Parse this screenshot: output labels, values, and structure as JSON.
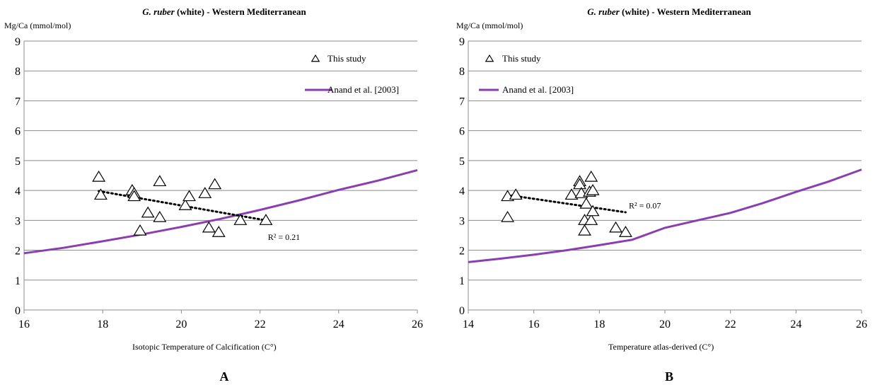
{
  "chart_data": [
    {
      "type": "scatter",
      "panel_label": "A",
      "title_italic": "G. ruber",
      "title_rest": " (white) - Western Mediterranean",
      "ylabel": "Mg/Ca (mmol/mol)",
      "xlabel": "Isotopic Temperature of Calcification (C°)",
      "xlim": [
        16,
        26
      ],
      "ylim": [
        0,
        9
      ],
      "xticks": [
        16,
        18,
        20,
        22,
        24,
        26
      ],
      "yticks": [
        0,
        1,
        2,
        3,
        4,
        5,
        6,
        7,
        8,
        9
      ],
      "grid": "horizontal",
      "legend": [
        {
          "label": "This study",
          "marker": "triangle"
        },
        {
          "label": "Anand et al. [2003]",
          "marker": "line",
          "color": "#8b3fae"
        }
      ],
      "series": [
        {
          "name": "This study",
          "marker": "triangle",
          "points": [
            [
              17.9,
              4.45
            ],
            [
              17.95,
              3.85
            ],
            [
              18.75,
              4.0
            ],
            [
              18.8,
              3.9
            ],
            [
              18.8,
              3.8
            ],
            [
              18.95,
              2.65
            ],
            [
              19.15,
              3.25
            ],
            [
              19.45,
              3.1
            ],
            [
              19.45,
              4.3
            ],
            [
              20.1,
              3.5
            ],
            [
              20.2,
              3.8
            ],
            [
              20.6,
              3.9
            ],
            [
              20.7,
              2.75
            ],
            [
              20.85,
              4.2
            ],
            [
              20.95,
              2.6
            ],
            [
              21.5,
              3.0
            ],
            [
              22.15,
              3.0
            ]
          ]
        },
        {
          "name": "Anand et al. [2003]",
          "type": "line",
          "color": "#8b3fae",
          "points": [
            [
              16,
              1.9
            ],
            [
              17,
              2.08
            ],
            [
              18,
              2.3
            ],
            [
              19,
              2.53
            ],
            [
              20,
              2.78
            ],
            [
              21,
              3.05
            ],
            [
              22,
              3.35
            ],
            [
              23,
              3.67
            ],
            [
              24,
              4.02
            ],
            [
              25,
              4.33
            ],
            [
              26,
              4.68
            ]
          ]
        }
      ],
      "trendline": {
        "points": [
          [
            17.9,
            3.98
          ],
          [
            22.15,
            3.0
          ]
        ],
        "label": "R² = 0.21",
        "label_at": [
          22.2,
          2.35
        ]
      }
    },
    {
      "type": "scatter",
      "panel_label": "B",
      "title_italic": "G. ruber",
      "title_rest": " (white) - Western Mediterranean",
      "ylabel": "Mg/Ca (mmol/mol)",
      "xlabel": "Temperature atlas-derived (C°)",
      "xlim": [
        14,
        26
      ],
      "ylim": [
        0,
        9
      ],
      "xticks": [
        14,
        16,
        18,
        20,
        22,
        24,
        26
      ],
      "yticks": [
        0,
        1,
        2,
        3,
        4,
        5,
        6,
        7,
        8,
        9
      ],
      "grid": "horizontal",
      "legend": [
        {
          "label": "This study",
          "marker": "triangle"
        },
        {
          "label": "Anand et al. [2003]",
          "marker": "line",
          "color": "#8b3fae"
        }
      ],
      "series": [
        {
          "name": "This study",
          "marker": "triangle",
          "points": [
            [
              15.2,
              3.8
            ],
            [
              15.2,
              3.1
            ],
            [
              15.45,
              3.85
            ],
            [
              17.15,
              3.85
            ],
            [
              17.4,
              4.3
            ],
            [
              17.4,
              4.2
            ],
            [
              17.45,
              3.9
            ],
            [
              17.55,
              3.0
            ],
            [
              17.55,
              2.65
            ],
            [
              17.6,
              3.55
            ],
            [
              17.7,
              3.95
            ],
            [
              17.75,
              4.45
            ],
            [
              17.75,
              3.0
            ],
            [
              17.8,
              4.0
            ],
            [
              17.8,
              3.3
            ],
            [
              18.5,
              2.75
            ],
            [
              18.8,
              2.6
            ]
          ]
        },
        {
          "name": "Anand et al. [2003]",
          "type": "line",
          "color": "#8b3fae",
          "points": [
            [
              14,
              1.6
            ],
            [
              15,
              1.72
            ],
            [
              16,
              1.85
            ],
            [
              17,
              2.0
            ],
            [
              18,
              2.17
            ],
            [
              19,
              2.35
            ],
            [
              20,
              2.75
            ],
            [
              21,
              3.0
            ],
            [
              22,
              3.25
            ],
            [
              23,
              3.58
            ],
            [
              24,
              3.95
            ],
            [
              25,
              4.3
            ],
            [
              26,
              4.7
            ]
          ]
        }
      ],
      "trendline": {
        "points": [
          [
            15.2,
            3.85
          ],
          [
            18.8,
            3.27
          ]
        ],
        "label": "R² = 0.07",
        "label_at": [
          18.9,
          3.4
        ]
      }
    }
  ]
}
